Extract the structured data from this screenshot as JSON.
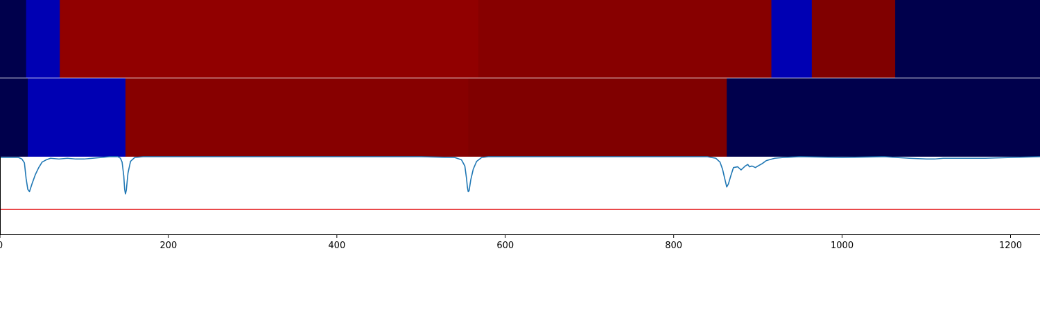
{
  "chart_data": [
    {
      "type": "heatmap",
      "segments": [
        {
          "start": 0,
          "end": 31,
          "color": "#00004c"
        },
        {
          "start": 31,
          "end": 71,
          "color": "#0000b3"
        },
        {
          "start": 71,
          "end": 568,
          "color": "#910000"
        },
        {
          "start": 568,
          "end": 916,
          "color": "#870000"
        },
        {
          "start": 916,
          "end": 964,
          "color": "#0000b3"
        },
        {
          "start": 964,
          "end": 1063,
          "color": "#800000"
        },
        {
          "start": 1063,
          "end": 1235,
          "color": "#00004c"
        }
      ]
    },
    {
      "type": "heatmap",
      "segments": [
        {
          "start": 0,
          "end": 33,
          "color": "#00004c"
        },
        {
          "start": 33,
          "end": 149,
          "color": "#0000b3"
        },
        {
          "start": 149,
          "end": 556,
          "color": "#870000"
        },
        {
          "start": 556,
          "end": 863,
          "color": "#800000"
        },
        {
          "start": 863,
          "end": 1235,
          "color": "#00004c"
        }
      ]
    },
    {
      "type": "line",
      "xlim": [
        0,
        1235
      ],
      "ylim": [
        0,
        1
      ],
      "x_ticks": [
        0,
        200,
        400,
        600,
        800,
        1000,
        1200
      ],
      "threshold": {
        "y": 0.32,
        "color": "#e31a1c"
      },
      "series": [
        {
          "color": "#1f77b4",
          "x": [
            0,
            22,
            26,
            29,
            31,
            33,
            35,
            38,
            42,
            46,
            50,
            55,
            60,
            70,
            80,
            90,
            100,
            110,
            120,
            130,
            140,
            143,
            145,
            147,
            148,
            149,
            150,
            152,
            155,
            160,
            170,
            200,
            300,
            400,
            500,
            540,
            548,
            552,
            554,
            555,
            556,
            557,
            559,
            562,
            566,
            572,
            580,
            600,
            700,
            800,
            840,
            850,
            855,
            858,
            861,
            863,
            865,
            868,
            871,
            876,
            880,
            885,
            888,
            890,
            893,
            897,
            900,
            905,
            910,
            920,
            930,
            950,
            1000,
            1050,
            1080,
            1100,
            1110,
            1120,
            1150,
            1170,
            1200,
            1235
          ],
          "y": [
            0.99,
            0.99,
            0.97,
            0.92,
            0.72,
            0.58,
            0.55,
            0.65,
            0.77,
            0.86,
            0.93,
            0.96,
            0.98,
            0.97,
            0.98,
            0.97,
            0.97,
            0.98,
            0.99,
            1.0,
            1.0,
            0.98,
            0.93,
            0.75,
            0.58,
            0.52,
            0.57,
            0.79,
            0.94,
            0.99,
            1.0,
            1.0,
            1.0,
            1.0,
            1.0,
            0.99,
            0.96,
            0.88,
            0.72,
            0.61,
            0.55,
            0.56,
            0.7,
            0.84,
            0.94,
            0.99,
            1.0,
            1.0,
            1.0,
            1.0,
            1.0,
            0.98,
            0.93,
            0.84,
            0.7,
            0.61,
            0.65,
            0.76,
            0.86,
            0.87,
            0.83,
            0.88,
            0.9,
            0.87,
            0.88,
            0.86,
            0.88,
            0.91,
            0.95,
            0.98,
            0.99,
            1.0,
            0.99,
            1.0,
            0.98,
            0.97,
            0.97,
            0.98,
            0.98,
            0.98,
            0.99,
            1.0
          ]
        }
      ]
    }
  ]
}
